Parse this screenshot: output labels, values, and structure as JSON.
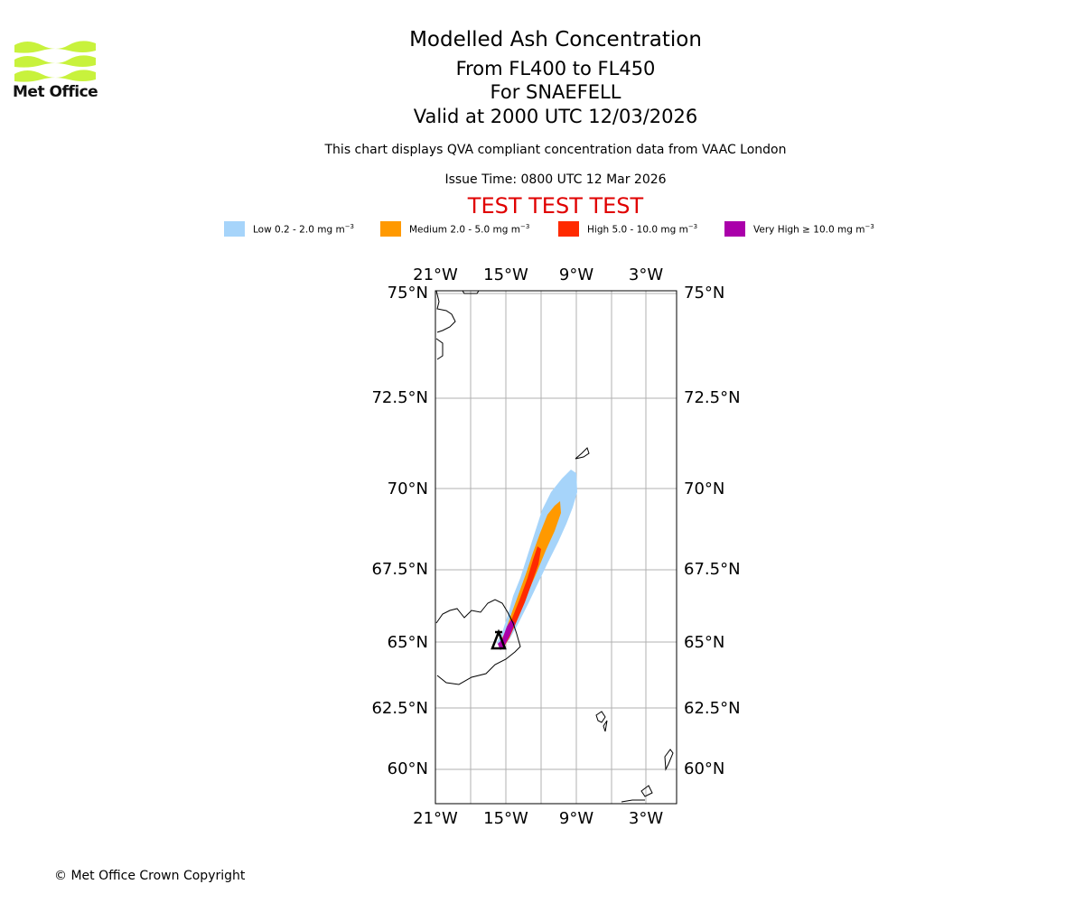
{
  "header": {
    "org": "Met Office",
    "title": "Modelled Ash Concentration",
    "levels": "From FL400 to FL450",
    "volcano": "For SNAEFELL",
    "valid": "Valid at 2000 UTC 12/03/2026",
    "subtitle": "This chart displays QVA compliant concentration data from VAAC London",
    "issue": "Issue Time: 0800 UTC 12 Mar 2026",
    "test_banner": "TEST TEST TEST"
  },
  "legend": [
    {
      "label": "Low 0.2 - 2.0 mg m",
      "color": "#a6d4fa"
    },
    {
      "label": "Medium 2.0 - 5.0 mg m",
      "color": "#ff9900"
    },
    {
      "label": "High 5.0 - 10.0 mg m",
      "color": "#ff2a00"
    },
    {
      "label": "Very High ≥ 10.0 mg m",
      "color": "#aa00aa"
    }
  ],
  "legend_unit_exp": "−3",
  "map": {
    "lon_ticks": [
      "21°W",
      "15°W",
      "9°W",
      "3°W"
    ],
    "lat_ticks": [
      "75°N",
      "72.5°N",
      "70°N",
      "67.5°N",
      "65°N",
      "62.5°N",
      "60°N"
    ]
  },
  "colors": {
    "logo_green": "#c8f23c",
    "test_red": "#e00000",
    "grid": "#b0b0b0"
  },
  "footer": {
    "copyright": "© Met Office Crown Copyright"
  }
}
